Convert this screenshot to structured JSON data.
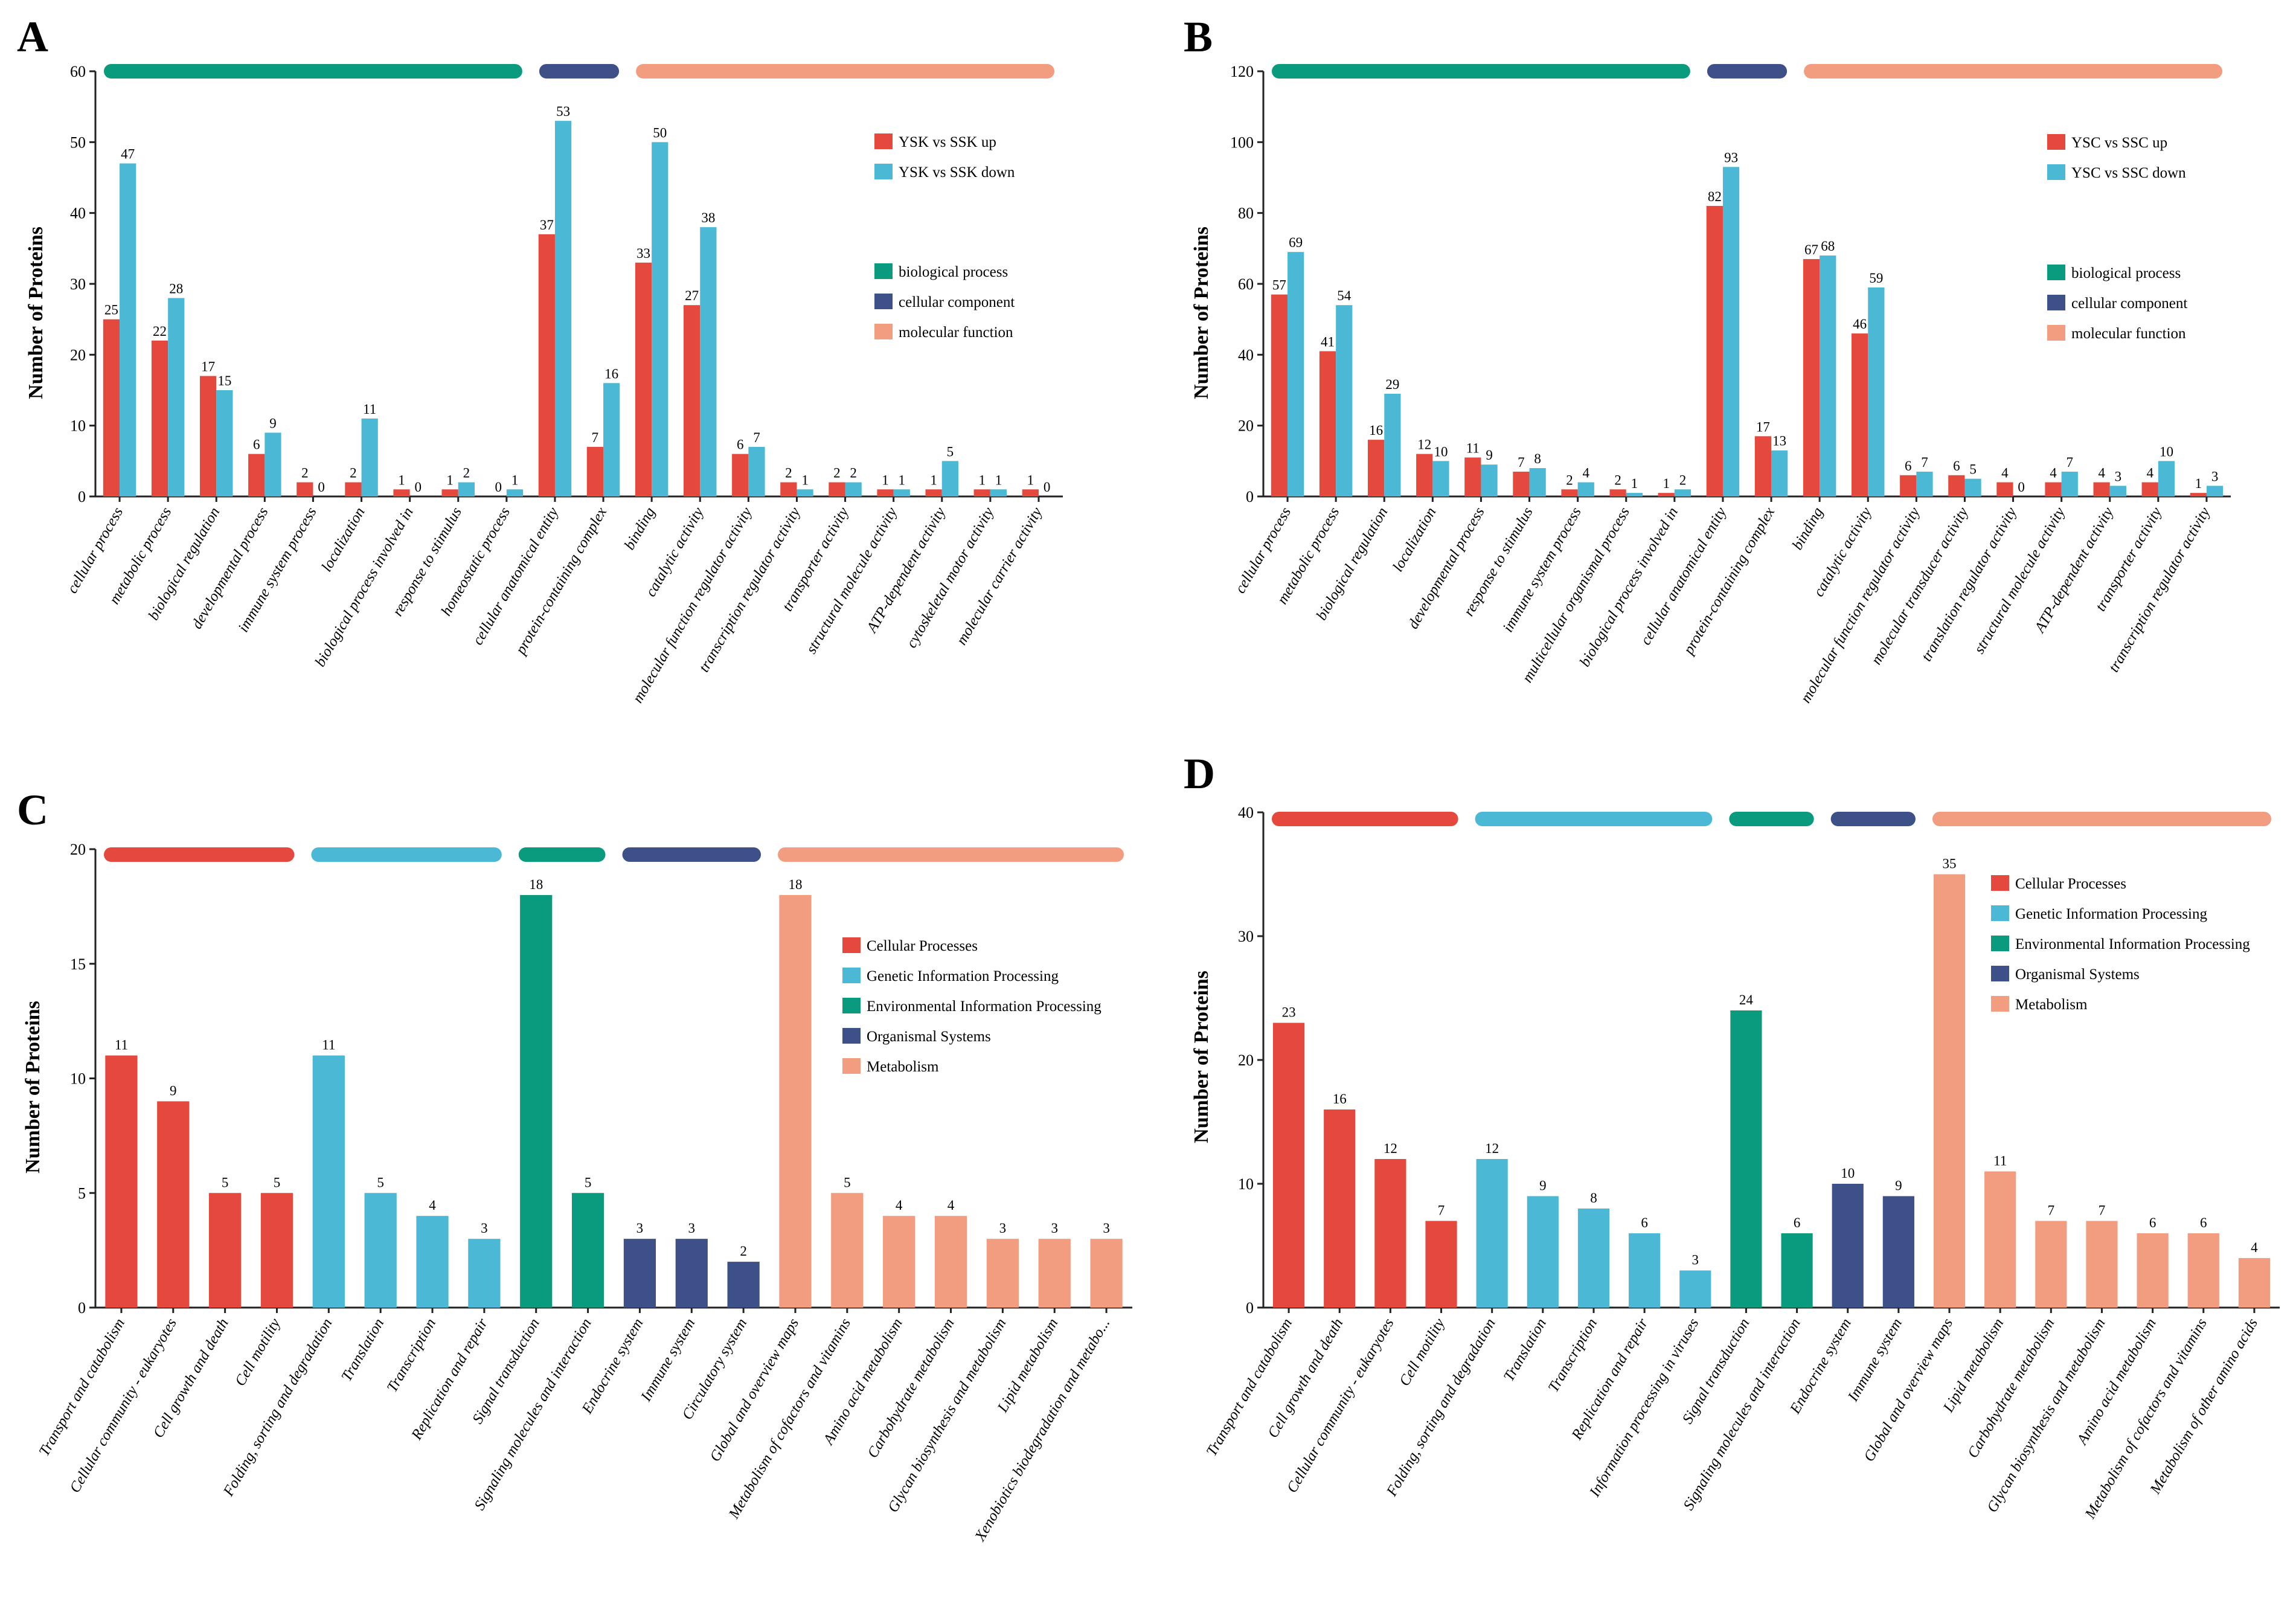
{
  "colors": {
    "up": "#e5483c",
    "down": "#4bb9d6",
    "biological_process": "#0a9a7e",
    "cellular_component": "#3d5088",
    "molecular_function": "#f29c80",
    "cellular_processes": "#e5483c",
    "genetic_information_processing": "#4bb9d6",
    "environmental_information_processing": "#0a9a7e",
    "organismal_systems": "#3d5088",
    "metabolism": "#f29c80",
    "axis": "#222222"
  },
  "chart_data": [
    {
      "panel": "A",
      "type": "bar",
      "ylabel": "Number of Proteins",
      "ylim": [
        0,
        60
      ],
      "yticks": [
        0,
        10,
        20,
        30,
        40,
        50,
        60
      ],
      "categories": [
        "cellular process",
        "metabolic process",
        "biological regulation",
        "developmental process",
        "immune system process",
        "localization",
        "biological process involved in",
        "response to stimulus",
        "homeostatic process",
        "cellular anatomical entity",
        "protein-containing complex",
        "binding",
        "catalytic activity",
        "molecular function regulator activity",
        "transcription regulator activity",
        "transporter activity",
        "structural molecule activity",
        "ATP-dependent activity",
        "cytoskeletal motor activity",
        "molecular carrier activity"
      ],
      "groups": [
        "biological_process",
        "biological_process",
        "biological_process",
        "biological_process",
        "biological_process",
        "biological_process",
        "biological_process",
        "biological_process",
        "biological_process",
        "cellular_component",
        "cellular_component",
        "molecular_function",
        "molecular_function",
        "molecular_function",
        "molecular_function",
        "molecular_function",
        "molecular_function",
        "molecular_function",
        "molecular_function",
        "molecular_function"
      ],
      "series": [
        {
          "name": "YSK vs SSK up",
          "color_key": "up",
          "values": [
            25,
            22,
            17,
            6,
            2,
            2,
            1,
            1,
            0,
            37,
            7,
            33,
            27,
            6,
            2,
            2,
            1,
            1,
            1,
            1
          ]
        },
        {
          "name": "YSK vs SSK down",
          "color_key": "down",
          "values": [
            47,
            28,
            15,
            9,
            0,
            11,
            0,
            2,
            1,
            53,
            16,
            50,
            38,
            7,
            1,
            2,
            1,
            5,
            1,
            0
          ]
        }
      ],
      "legend_groups": [
        {
          "label": "biological process",
          "color_key": "biological_process"
        },
        {
          "label": "cellular component",
          "color_key": "cellular_component"
        },
        {
          "label": "molecular function",
          "color_key": "molecular_function"
        }
      ],
      "group_bars": [
        {
          "color_key": "biological_process",
          "from": 0,
          "to": 8
        },
        {
          "color_key": "cellular_component",
          "from": 9,
          "to": 10
        },
        {
          "color_key": "molecular_function",
          "from": 11,
          "to": 19
        }
      ]
    },
    {
      "panel": "B",
      "type": "bar",
      "ylabel": "Number of Proteins",
      "ylim": [
        0,
        120
      ],
      "yticks": [
        0,
        20,
        40,
        60,
        80,
        100,
        120
      ],
      "categories": [
        "cellular process",
        "metabolic process",
        "biological regulation",
        "localization",
        "developmental process",
        "response to stimulus",
        "immune system process",
        "multicellular organismal process",
        "biological process involved in",
        "cellular anatomical entity",
        "protein-containing complex",
        "binding",
        "catalytic activity",
        "molecular function regulator activity",
        "molecular transducer activity",
        "translation regulator activity",
        "structural molecule activity",
        "ATP-dependent activity",
        "transporter activity",
        "transcription regulator activity"
      ],
      "groups": [
        "biological_process",
        "biological_process",
        "biological_process",
        "biological_process",
        "biological_process",
        "biological_process",
        "biological_process",
        "biological_process",
        "biological_process",
        "cellular_component",
        "cellular_component",
        "molecular_function",
        "molecular_function",
        "molecular_function",
        "molecular_function",
        "molecular_function",
        "molecular_function",
        "molecular_function",
        "molecular_function",
        "molecular_function"
      ],
      "series": [
        {
          "name": "YSC vs SSC up",
          "color_key": "up",
          "values": [
            57,
            41,
            16,
            12,
            11,
            7,
            2,
            2,
            1,
            82,
            17,
            67,
            46,
            6,
            6,
            4,
            4,
            4,
            4,
            1
          ]
        },
        {
          "name": "YSC vs SSC down",
          "color_key": "down",
          "values": [
            69,
            54,
            29,
            10,
            9,
            8,
            4,
            1,
            2,
            93,
            13,
            68,
            59,
            7,
            5,
            0,
            7,
            3,
            10,
            3
          ]
        }
      ],
      "legend_groups": [
        {
          "label": "biological process",
          "color_key": "biological_process"
        },
        {
          "label": "cellular component",
          "color_key": "cellular_component"
        },
        {
          "label": "molecular function",
          "color_key": "molecular_function"
        }
      ],
      "group_bars": [
        {
          "color_key": "biological_process",
          "from": 0,
          "to": 8
        },
        {
          "color_key": "cellular_component",
          "from": 9,
          "to": 10
        },
        {
          "color_key": "molecular_function",
          "from": 11,
          "to": 19
        }
      ]
    },
    {
      "panel": "C",
      "type": "bar",
      "ylabel": "Number of Proteins",
      "ylim": [
        0,
        20
      ],
      "yticks": [
        0,
        5,
        10,
        15,
        20
      ],
      "categories": [
        "Transport and catabolism",
        "Cellular community - eukaryotes",
        "Cell growth and death",
        "Cell motility",
        "Folding, sorting and degradation",
        "Translation",
        "Transcription",
        "Replication and repair",
        "Signal transduction",
        "Signaling molecules and interaction",
        "Endocrine system",
        "Immune system",
        "Circulatory system",
        "Global and overview maps",
        "Metabolism of cofactors and vitamins",
        "Amino acid metabolism",
        "Carbohydrate metabolism",
        "Glycan biosynthesis and metabolism",
        "Lipid metabolism",
        "Xenobiotics biodegradation and metabo..."
      ],
      "groups": [
        "cellular_processes",
        "cellular_processes",
        "cellular_processes",
        "cellular_processes",
        "genetic_information_processing",
        "genetic_information_processing",
        "genetic_information_processing",
        "genetic_information_processing",
        "environmental_information_processing",
        "environmental_information_processing",
        "organismal_systems",
        "organismal_systems",
        "organismal_systems",
        "metabolism",
        "metabolism",
        "metabolism",
        "metabolism",
        "metabolism",
        "metabolism",
        "metabolism"
      ],
      "values": [
        11,
        9,
        5,
        5,
        11,
        5,
        4,
        3,
        18,
        5,
        3,
        3,
        2,
        18,
        5,
        4,
        4,
        3,
        3,
        3
      ],
      "legend_groups": [
        {
          "label": "Cellular Processes",
          "color_key": "cellular_processes"
        },
        {
          "label": "Genetic Information Processing",
          "color_key": "genetic_information_processing"
        },
        {
          "label": "Environmental Information Processing",
          "color_key": "environmental_information_processing"
        },
        {
          "label": "Organismal Systems",
          "color_key": "organismal_systems"
        },
        {
          "label": "Metabolism",
          "color_key": "metabolism"
        }
      ],
      "group_bars": [
        {
          "color_key": "cellular_processes",
          "from": 0,
          "to": 3
        },
        {
          "color_key": "genetic_information_processing",
          "from": 4,
          "to": 7
        },
        {
          "color_key": "environmental_information_processing",
          "from": 8,
          "to": 9
        },
        {
          "color_key": "organismal_systems",
          "from": 10,
          "to": 12
        },
        {
          "color_key": "metabolism",
          "from": 13,
          "to": 19
        }
      ]
    },
    {
      "panel": "D",
      "type": "bar",
      "ylabel": "Number of Proteins",
      "ylim": [
        0,
        40
      ],
      "yticks": [
        0,
        10,
        20,
        30,
        40
      ],
      "categories": [
        "Transport and catabolism",
        "Cell growth and death",
        "Cellular community - eukaryotes",
        "Cell motility",
        "Folding, sorting and degradation",
        "Translation",
        "Transcription",
        "Replication and repair",
        "Information processing in viruses",
        "Signal transduction",
        "Signaling molecules and interaction",
        "Endocrine system",
        "Immune system",
        "Global and overview maps",
        "Lipid metabolism",
        "Carbohydrate metabolism",
        "Glycan biosynthesis and metabolism",
        "Amino acid metabolism",
        "Metabolism of cofactors and vitamins",
        "Metabolism of other amino acids"
      ],
      "groups": [
        "cellular_processes",
        "cellular_processes",
        "cellular_processes",
        "cellular_processes",
        "genetic_information_processing",
        "genetic_information_processing",
        "genetic_information_processing",
        "genetic_information_processing",
        "genetic_information_processing",
        "environmental_information_processing",
        "environmental_information_processing",
        "organismal_systems",
        "organismal_systems",
        "metabolism",
        "metabolism",
        "metabolism",
        "metabolism",
        "metabolism",
        "metabolism",
        "metabolism"
      ],
      "values": [
        23,
        16,
        12,
        7,
        12,
        9,
        8,
        6,
        3,
        24,
        6,
        10,
        9,
        35,
        11,
        7,
        7,
        6,
        6,
        4
      ],
      "legend_groups": [
        {
          "label": "Cellular Processes",
          "color_key": "cellular_processes"
        },
        {
          "label": "Genetic Information Processing",
          "color_key": "genetic_information_processing"
        },
        {
          "label": "Environmental Information Processing",
          "color_key": "environmental_information_processing"
        },
        {
          "label": "Organismal Systems",
          "color_key": "organismal_systems"
        },
        {
          "label": "Metabolism",
          "color_key": "metabolism"
        }
      ],
      "group_bars": [
        {
          "color_key": "cellular_processes",
          "from": 0,
          "to": 3
        },
        {
          "color_key": "genetic_information_processing",
          "from": 4,
          "to": 8
        },
        {
          "color_key": "environmental_information_processing",
          "from": 9,
          "to": 10
        },
        {
          "color_key": "organismal_systems",
          "from": 11,
          "to": 12
        },
        {
          "color_key": "metabolism",
          "from": 13,
          "to": 19
        }
      ]
    }
  ]
}
